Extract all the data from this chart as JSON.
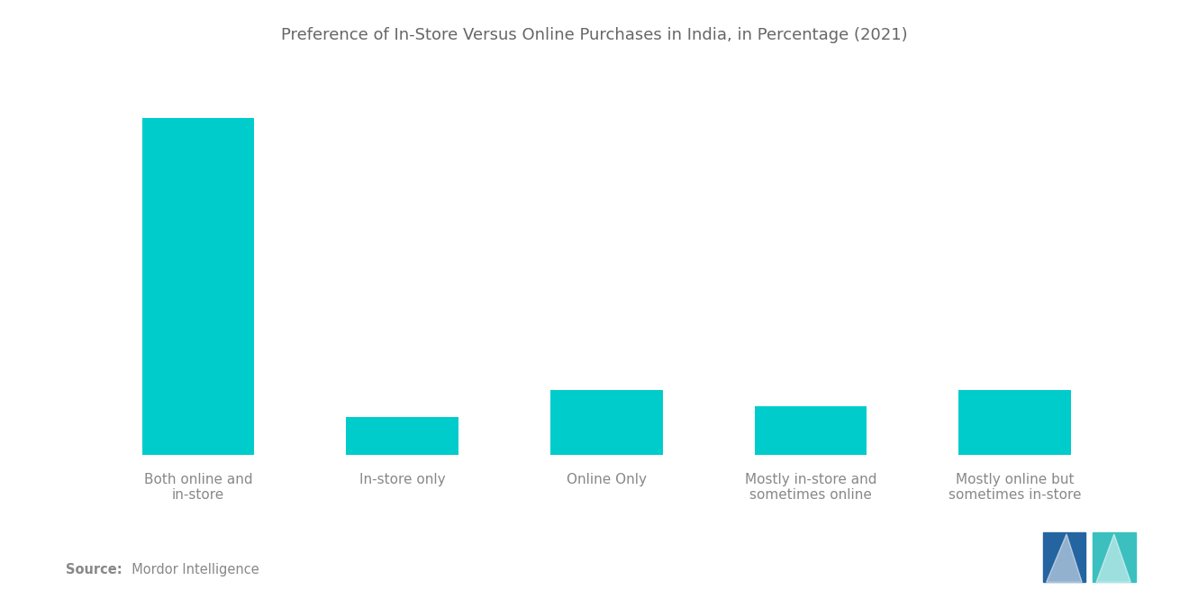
{
  "title": "Preference of In-Store Versus Online Purchases in India, in Percentage (2021)",
  "categories": [
    "Both online and\nin-store",
    "In-store only",
    "Online Only",
    "Mostly in-store and\nsometimes online",
    "Mostly online but\nsometimes in-store"
  ],
  "values": [
    62,
    7,
    12,
    9,
    12
  ],
  "bar_color": "#00CCCC",
  "background_color": "#FFFFFF",
  "text_color": "#888888",
  "title_color": "#666666",
  "source_label": "Source:",
  "source_text": "  Mordor Intelligence",
  "title_fontsize": 13.0,
  "label_fontsize": 11.0,
  "source_fontsize": 10.5,
  "ylim": [
    0,
    70
  ],
  "bar_width": 0.55
}
